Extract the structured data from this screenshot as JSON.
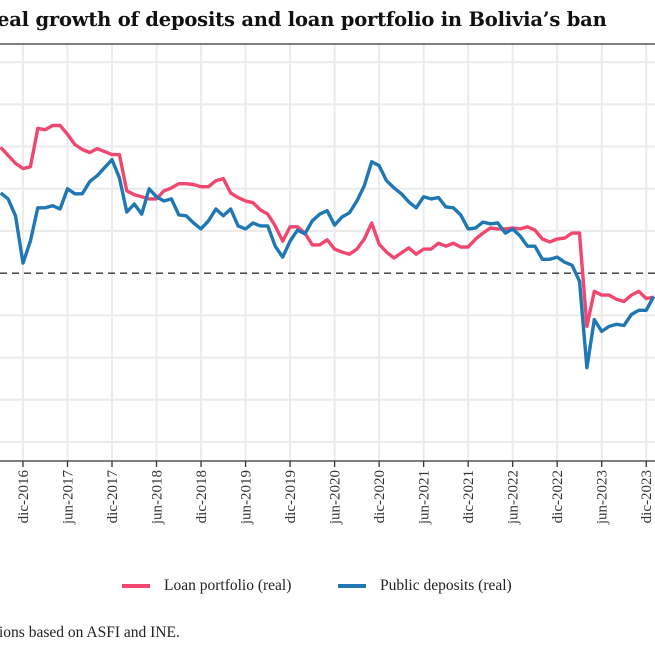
{
  "chart_data": {
    "type": "line",
    "title": "eal growth of deposits and loan portfolio in Bolivia’s ban",
    "xlabel": "",
    "ylabel": "",
    "x_start": "2016-09",
    "x": [
      "2016-09",
      "2016-10",
      "2016-11",
      "2016-12",
      "2017-01",
      "2017-02",
      "2017-03",
      "2017-04",
      "2017-05",
      "2017-06",
      "2017-07",
      "2017-08",
      "2017-09",
      "2017-10",
      "2017-11",
      "2017-12",
      "2018-01",
      "2018-02",
      "2018-03",
      "2018-04",
      "2018-05",
      "2018-06",
      "2018-07",
      "2018-08",
      "2018-09",
      "2018-10",
      "2018-11",
      "2018-12",
      "2019-01",
      "2019-02",
      "2019-03",
      "2019-04",
      "2019-05",
      "2019-06",
      "2019-07",
      "2019-08",
      "2019-09",
      "2019-10",
      "2019-11",
      "2019-12",
      "2020-01",
      "2020-02",
      "2020-03",
      "2020-04",
      "2020-05",
      "2020-06",
      "2020-07",
      "2020-08",
      "2020-09",
      "2020-10",
      "2020-11",
      "2020-12",
      "2021-01",
      "2021-02",
      "2021-03",
      "2021-04",
      "2021-05",
      "2021-06",
      "2021-07",
      "2021-08",
      "2021-09",
      "2021-10",
      "2021-11",
      "2021-12",
      "2022-01",
      "2022-02",
      "2022-03",
      "2022-04",
      "2022-05",
      "2022-06",
      "2022-07",
      "2022-08",
      "2022-09",
      "2022-10",
      "2022-11",
      "2022-12",
      "2023-01",
      "2023-02",
      "2023-03",
      "2023-04",
      "2023-05",
      "2023-06",
      "2023-07",
      "2023-08",
      "2023-09",
      "2023-10",
      "2023-11",
      "2023-12",
      "2024-01"
    ],
    "x_ticks": [
      "dic-2016",
      "jun-2017",
      "dic-2017",
      "jun-2018",
      "dic-2018",
      "jun-2019",
      "dic-2019",
      "jun-2020",
      "dic-2020",
      "jun-2021",
      "dic-2021",
      "jun-2022",
      "dic-2022",
      "jun-2023",
      "dic-2023"
    ],
    "x_tick_dates": [
      "2016-12",
      "2017-06",
      "2017-12",
      "2018-06",
      "2018-12",
      "2019-06",
      "2019-12",
      "2020-06",
      "2020-12",
      "2021-06",
      "2021-12",
      "2022-06",
      "2022-12",
      "2023-06",
      "2023-12"
    ],
    "ylim": [
      -4.45,
      5.43
    ],
    "y_gridlines": [
      -4,
      -3,
      -2,
      -1,
      0,
      1,
      2,
      3,
      4,
      5
    ],
    "reference_line": {
      "y": 0,
      "style": "dashed",
      "color": "#333333"
    },
    "grid": true,
    "legend_position": "bottom",
    "series": [
      {
        "name": "Loan portfolio (real)",
        "color": "#F0476F",
        "values": [
          2.98,
          2.79,
          2.6,
          2.48,
          2.52,
          3.43,
          3.4,
          3.5,
          3.5,
          3.29,
          3.05,
          2.93,
          2.86,
          2.95,
          2.88,
          2.81,
          2.81,
          1.95,
          1.86,
          1.81,
          1.76,
          1.76,
          1.95,
          2.02,
          2.12,
          2.12,
          2.1,
          2.05,
          2.05,
          2.19,
          2.24,
          1.9,
          1.79,
          1.71,
          1.67,
          1.5,
          1.4,
          1.12,
          0.76,
          1.1,
          1.1,
          0.95,
          0.67,
          0.67,
          0.79,
          0.57,
          0.5,
          0.45,
          0.57,
          0.81,
          1.19,
          0.69,
          0.5,
          0.36,
          0.48,
          0.6,
          0.45,
          0.57,
          0.57,
          0.71,
          0.64,
          0.71,
          0.62,
          0.62,
          0.81,
          0.95,
          1.07,
          1.05,
          1.05,
          1.07,
          1.05,
          1.1,
          1.02,
          0.81,
          0.74,
          0.81,
          0.83,
          0.95,
          0.95,
          -1.26,
          -0.43,
          -0.52,
          -0.52,
          -0.62,
          -0.67,
          -0.52,
          -0.43,
          -0.6,
          -0.57
        ]
      },
      {
        "name": "Public deposits (real)",
        "color": "#1F77B4",
        "values": [
          1.9,
          1.76,
          1.36,
          0.24,
          0.76,
          1.55,
          1.55,
          1.6,
          1.52,
          2.0,
          1.88,
          1.88,
          2.17,
          2.31,
          2.5,
          2.69,
          2.26,
          1.45,
          1.64,
          1.4,
          2.0,
          1.81,
          1.71,
          1.76,
          1.38,
          1.36,
          1.19,
          1.05,
          1.24,
          1.52,
          1.36,
          1.52,
          1.12,
          1.05,
          1.19,
          1.12,
          1.12,
          0.64,
          0.38,
          0.76,
          1.02,
          0.93,
          1.24,
          1.4,
          1.48,
          1.14,
          1.33,
          1.43,
          1.71,
          2.07,
          2.64,
          2.55,
          2.19,
          2.02,
          1.88,
          1.69,
          1.55,
          1.81,
          1.76,
          1.79,
          1.57,
          1.55,
          1.38,
          1.05,
          1.07,
          1.21,
          1.17,
          1.19,
          0.95,
          1.05,
          0.88,
          0.64,
          0.64,
          0.33,
          0.33,
          0.38,
          0.26,
          0.19,
          -0.19,
          -2.24,
          -1.1,
          -1.38,
          -1.26,
          -1.21,
          -1.24,
          -0.98,
          -0.88,
          -0.88,
          -0.55
        ]
      }
    ]
  },
  "caption": "ions based on ASFI and INE."
}
